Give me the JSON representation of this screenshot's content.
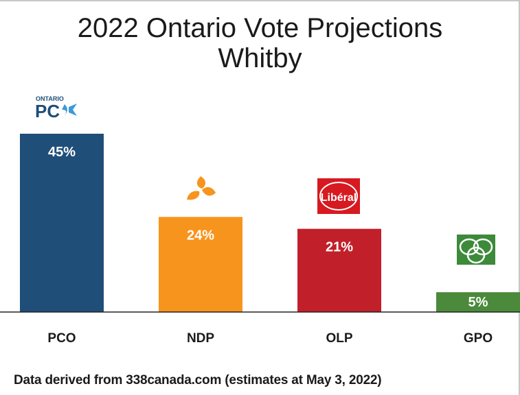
{
  "title": "2022 Ontario Vote Projections",
  "subtitle": "Whitby",
  "footer": "Data derived from 338canada.com (estimates at May 3, 2022)",
  "logos": {
    "pco": {
      "icon": "ontario-pc-logo-icon",
      "text_top": "ONTARIO",
      "text_main": "PC"
    },
    "ndp": {
      "icon": "ndp-logo-icon"
    },
    "olp": {
      "icon": "liberal-logo-icon",
      "text": "Libéral"
    },
    "gpo": {
      "icon": "green-party-logo-icon"
    }
  },
  "chart_data": {
    "type": "bar",
    "categories": [
      "PCO",
      "NDP",
      "OLP",
      "GPO"
    ],
    "values": [
      45,
      24,
      21,
      5
    ],
    "value_labels": [
      "45%",
      "24%",
      "21%",
      "5%"
    ],
    "colors": [
      "#1f4e79",
      "#f7941d",
      "#c1202a",
      "#4a8a3a"
    ],
    "ylim": [
      0,
      50
    ],
    "grid": false,
    "legend": "none"
  }
}
